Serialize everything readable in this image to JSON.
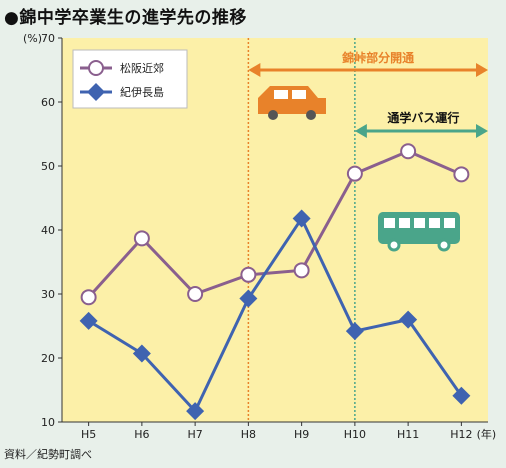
{
  "title": "●錦中学卒業生の進学先の推移",
  "source": "資料／紀勢町調べ",
  "colors": {
    "matsusaka": "#8a5f8e",
    "kii": "#3f63b0",
    "plot_bg": "#fcf0a8",
    "outer_bg": "#e8f0ea",
    "orange": "#e8822a",
    "green": "#4aa58a"
  },
  "annotations": {
    "road": "錦峠部分開通",
    "bus": "通学バス運行"
  },
  "icons": [
    "car-icon",
    "bus-icon"
  ],
  "chart_data": {
    "type": "line",
    "categories": [
      "H5",
      "H6",
      "H7",
      "H8",
      "H9",
      "H10",
      "H11",
      "H12"
    ],
    "x_unit": "(年)",
    "y_unit": "(%)",
    "ylim": [
      10,
      70
    ],
    "yticks": [
      10,
      20,
      30,
      40,
      50,
      60,
      70
    ],
    "grid": false,
    "legend_position": "top-left",
    "series": [
      {
        "name": "松阪近郊",
        "marker": "circle",
        "values": [
          29.5,
          38.7,
          30.0,
          33.0,
          33.7,
          48.8,
          52.3,
          48.7
        ]
      },
      {
        "name": "紀伊長島",
        "marker": "diamond",
        "values": [
          25.8,
          20.7,
          11.7,
          29.3,
          41.8,
          24.2,
          26.0,
          14.1
        ]
      }
    ]
  }
}
